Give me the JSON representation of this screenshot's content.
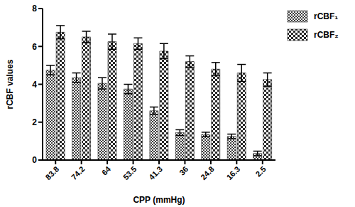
{
  "chart_data": {
    "type": "bar",
    "x_label": "CPP (mmHg)",
    "y_label": "rCBF values",
    "categories": [
      "83.8",
      "74.2",
      "64",
      "53.5",
      "41.3",
      "36",
      "24.8",
      "16.3",
      "2.5"
    ],
    "series": [
      {
        "name": "rCBF₁",
        "color": "#404040",
        "values": [
          4.75,
          4.35,
          4.05,
          3.75,
          2.6,
          1.45,
          1.35,
          1.25,
          0.35
        ],
        "errors": [
          0.25,
          0.25,
          0.3,
          0.25,
          0.2,
          0.15,
          0.12,
          0.12,
          0.12
        ]
      },
      {
        "name": "rCBF₂",
        "color": "#2a2a2a",
        "values": [
          6.75,
          6.5,
          6.25,
          6.15,
          5.75,
          5.2,
          4.8,
          4.6,
          4.25
        ],
        "errors": [
          0.35,
          0.3,
          0.4,
          0.3,
          0.4,
          0.3,
          0.35,
          0.45,
          0.35
        ]
      }
    ],
    "ylim": [
      0,
      8
    ],
    "yticks": [
      0,
      2,
      4,
      6,
      8
    ],
    "grid": false,
    "legend": "right"
  }
}
